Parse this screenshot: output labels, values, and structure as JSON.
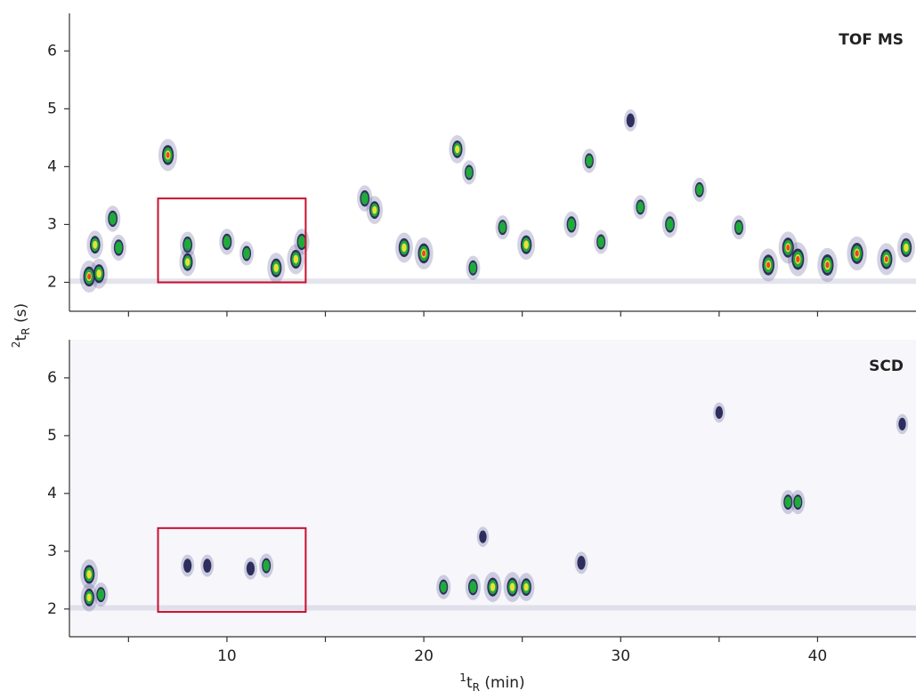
{
  "chart_data": [
    {
      "type": "scatter",
      "label": "TOF MS",
      "ylabel_parts": [
        "2",
        "t",
        "R",
        " (s)"
      ],
      "xlim": [
        2,
        45
      ],
      "ylim": [
        1.5,
        6.65
      ],
      "yticks": [
        2,
        3,
        4,
        5,
        6
      ],
      "xtick_marks": [
        5,
        10,
        15,
        20,
        25,
        30,
        35,
        40
      ],
      "highlight_box": {
        "x": [
          6.5,
          14
        ],
        "y": [
          2,
          3.45
        ],
        "color": "#c8102e"
      },
      "x": [
        3.0,
        3.5,
        3.3,
        4.2,
        4.5,
        7.0,
        8.0,
        8.0,
        10.0,
        11.0,
        12.5,
        13.5,
        13.8,
        17.0,
        17.5,
        19.0,
        20.0,
        21.7,
        22.3,
        22.5,
        24.0,
        25.2,
        27.5,
        28.4,
        29.0,
        30.5,
        31.0,
        32.5,
        34.0,
        36.0,
        37.5,
        38.5,
        39.0,
        40.5,
        42.0,
        43.5,
        44.5
      ],
      "y": [
        2.1,
        2.15,
        2.65,
        3.1,
        2.6,
        4.2,
        2.65,
        2.35,
        2.7,
        2.5,
        2.25,
        2.4,
        2.7,
        3.45,
        3.25,
        2.6,
        2.5,
        4.3,
        3.9,
        2.25,
        2.95,
        2.65,
        3.0,
        4.1,
        2.7,
        4.8,
        3.3,
        3.0,
        3.6,
        2.95,
        2.3,
        2.6,
        2.4,
        2.3,
        2.5,
        2.4,
        2.6
      ],
      "intensity": [
        0.9,
        0.8,
        0.7,
        0.6,
        0.6,
        0.9,
        0.6,
        0.7,
        0.6,
        0.5,
        0.8,
        0.8,
        0.6,
        0.6,
        0.7,
        0.8,
        0.9,
        0.7,
        0.5,
        0.5,
        0.5,
        0.8,
        0.6,
        0.5,
        0.5,
        0.4,
        0.5,
        0.6,
        0.5,
        0.5,
        0.95,
        0.9,
        1.0,
        1.0,
        1.0,
        0.9,
        0.8
      ]
    },
    {
      "type": "scatter",
      "label": "SCD",
      "xlabel_parts": [
        "1",
        "t",
        "R",
        " (min)"
      ],
      "xlim": [
        2,
        45
      ],
      "ylim": [
        1.52,
        6.66
      ],
      "yticks": [
        2,
        3,
        4,
        5,
        6
      ],
      "xticks": [
        10,
        20,
        30,
        40
      ],
      "x_minor_ticks": [
        5,
        15,
        25,
        35
      ],
      "highlight_box": {
        "x": [
          6.5,
          14
        ],
        "y": [
          1.95,
          3.4
        ],
        "color": "#c8102e"
      },
      "x": [
        3.0,
        3.0,
        3.6,
        8.0,
        9.0,
        11.2,
        12.0,
        21.0,
        22.5,
        23.5,
        24.5,
        25.2,
        28.0,
        38.5,
        39.0,
        35.0,
        44.3,
        23.0
      ],
      "y": [
        2.6,
        2.2,
        2.25,
        2.75,
        2.75,
        2.7,
        2.75,
        2.38,
        2.38,
        2.38,
        2.38,
        2.38,
        2.8,
        3.85,
        3.85,
        5.4,
        5.2,
        3.25
      ],
      "intensity": [
        0.8,
        0.7,
        0.5,
        0.4,
        0.4,
        0.4,
        0.5,
        0.5,
        0.6,
        0.8,
        0.8,
        0.7,
        0.4,
        0.5,
        0.5,
        0.3,
        0.3,
        0.3
      ]
    }
  ]
}
